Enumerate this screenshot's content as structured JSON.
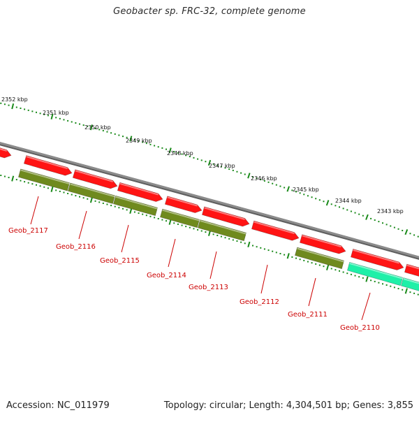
{
  "title": "Geobacter sp. FRC-32, complete genome",
  "footer": {
    "accession": "Accession: NC_011979",
    "topology": "Topology: circular; Length: 4,304,501 bp; Genes: 3,855"
  },
  "colors": {
    "backbone": "#8c8c8c",
    "forward_gene": "#ff1414",
    "reverse_gene": "#6f8a1e",
    "highlight_gene": "#1ef0a8",
    "tick": "#1a8a1a",
    "label": "#cc0000"
  },
  "scale_labels": [
    "2352 kbp",
    "2351 kbp",
    "2350 kbp",
    "2349 kbp",
    "2348 kbp",
    "2347 kbp",
    "2346 kbp",
    "2345 kbp",
    "2344 kbp",
    "2343 kbp"
  ],
  "gene_labels": [
    "Geob_2117",
    "Geob_2116",
    "Geob_2115",
    "Geob_2114",
    "Geob_2113",
    "Geob_2112",
    "Geob_2111",
    "Geob_2110"
  ]
}
